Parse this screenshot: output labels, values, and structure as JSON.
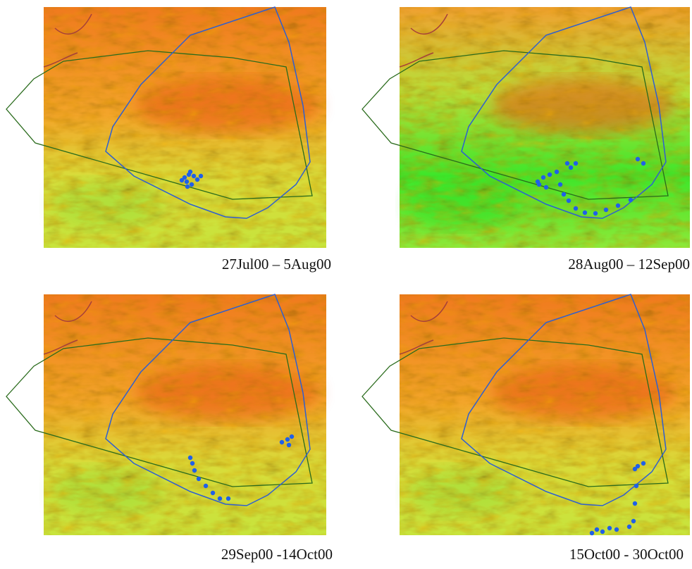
{
  "panels": [
    {
      "caption": "27Jul00 – 5Aug00"
    },
    {
      "caption": "28Aug00 – 12Sep00"
    },
    {
      "caption": "29Sep00 -14Oct00"
    },
    {
      "caption": "15Oct00 - 30Oct00"
    }
  ]
}
